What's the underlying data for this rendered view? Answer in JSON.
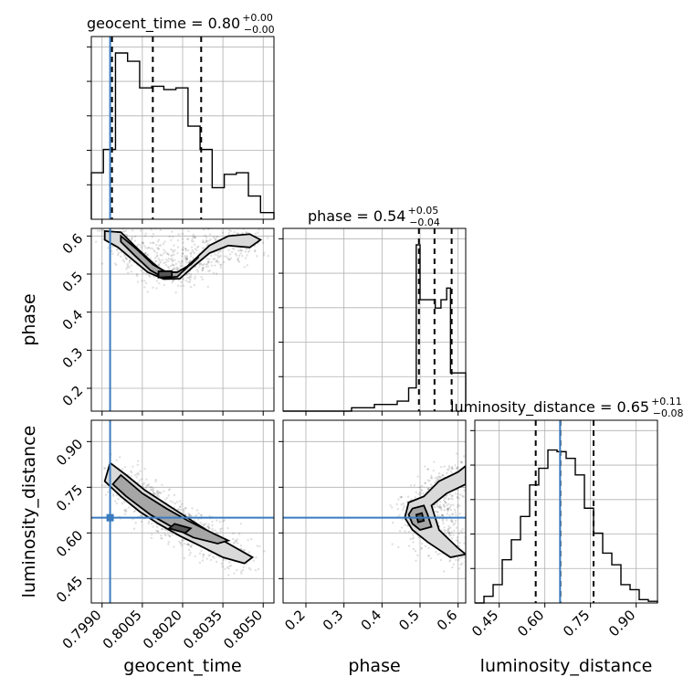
{
  "chart_data": {
    "type": "corner",
    "parameters": [
      "geocent_time",
      "phase",
      "luminosity_distance"
    ],
    "truths": {
      "geocent_time": 0.7993,
      "phase": null,
      "luminosity_distance": 0.65
    },
    "titles": [
      {
        "param": "geocent_time",
        "text": "geocent_time = 0.80",
        "plus": "+0.00",
        "minus": "−0.00"
      },
      {
        "param": "phase",
        "text": "phase = 0.54",
        "plus": "+0.05",
        "minus": "−0.04"
      },
      {
        "param": "luminosity_distance",
        "text": "luminosity_distance = 0.65",
        "plus": "+0.11",
        "minus": "−0.08"
      }
    ],
    "axes": {
      "geocent_time": {
        "label": "geocent_time",
        "range": [
          0.7986,
          0.8054
        ],
        "ticks": [
          0.799,
          0.8005,
          0.802,
          0.8035,
          0.805
        ],
        "tick_labels": [
          "0.7990",
          "0.8005",
          "0.8020",
          "0.8035",
          "0.8050"
        ]
      },
      "phase": {
        "label": "phase",
        "range": [
          0.14,
          0.62
        ],
        "ticks": [
          0.2,
          0.3,
          0.4,
          0.5,
          0.6
        ],
        "tick_labels": [
          "0.2",
          "0.3",
          "0.4",
          "0.5",
          "0.6"
        ]
      },
      "luminosity_distance": {
        "label": "luminosity_distance",
        "range": [
          0.37,
          0.97
        ],
        "ticks": [
          0.45,
          0.6,
          0.75,
          0.9
        ],
        "tick_labels": [
          "0.45",
          "0.60",
          "0.75",
          "0.90"
        ]
      }
    },
    "histograms": [
      {
        "param": "geocent_time",
        "edges": [
          0.7986,
          0.79905,
          0.7995,
          0.79995,
          0.8004,
          0.80085,
          0.8013,
          0.80175,
          0.8022,
          0.80265,
          0.8031,
          0.80355,
          0.804,
          0.80445,
          0.8049,
          0.8054
        ],
        "counts": [
          0.28,
          0.42,
          1.0,
          0.95,
          0.79,
          0.8,
          0.78,
          0.79,
          0.56,
          0.42,
          0.19,
          0.27,
          0.28,
          0.14,
          0.04
        ],
        "quantiles": [
          0.79937,
          0.80089,
          0.80269
        ]
      },
      {
        "param": "phase",
        "edges": [
          0.14,
          0.2,
          0.26,
          0.32,
          0.38,
          0.44,
          0.47,
          0.49,
          0.5,
          0.52,
          0.54,
          0.555,
          0.57,
          0.58,
          0.6,
          0.62
        ],
        "counts": [
          0.0,
          0.0,
          0.0,
          0.02,
          0.04,
          0.06,
          0.14,
          1.0,
          0.67,
          0.67,
          0.62,
          0.67,
          0.74,
          0.23,
          0.23
        ],
        "quantiles": [
          0.497,
          0.538,
          0.583
        ]
      },
      {
        "param": "luminosity_distance",
        "edges": [
          0.37,
          0.4,
          0.43,
          0.46,
          0.49,
          0.52,
          0.55,
          0.58,
          0.61,
          0.64,
          0.67,
          0.7,
          0.73,
          0.76,
          0.79,
          0.82,
          0.85,
          0.88,
          0.91,
          0.94,
          0.97
        ],
        "counts": [
          0.0,
          0.04,
          0.11,
          0.26,
          0.38,
          0.52,
          0.71,
          0.81,
          0.92,
          0.91,
          0.87,
          0.77,
          0.57,
          0.42,
          0.3,
          0.23,
          0.11,
          0.08,
          0.02,
          0.01
        ],
        "quantiles": [
          0.57,
          0.651,
          0.76
        ]
      }
    ],
    "pairs": [
      {
        "x": "geocent_time",
        "y": "phase",
        "contour_levels": [
          [
            [
              0.7991,
              0.613
            ],
            [
              0.7997,
              0.61
            ],
            [
              0.8002,
              0.575
            ],
            [
              0.8008,
              0.535
            ],
            [
              0.8013,
              0.505
            ],
            [
              0.8019,
              0.503
            ],
            [
              0.8024,
              0.535
            ],
            [
              0.803,
              0.575
            ],
            [
              0.8037,
              0.6
            ],
            [
              0.8045,
              0.605
            ],
            [
              0.8049,
              0.59
            ],
            [
              0.8045,
              0.57
            ],
            [
              0.8037,
              0.575
            ],
            [
              0.803,
              0.555
            ],
            [
              0.8024,
              0.52
            ],
            [
              0.8019,
              0.488
            ],
            [
              0.8013,
              0.487
            ],
            [
              0.8007,
              0.505
            ],
            [
              0.8001,
              0.54
            ],
            [
              0.7996,
              0.57
            ],
            [
              0.7991,
              0.59
            ]
          ],
          [
            [
              0.7997,
              0.6
            ],
            [
              0.8003,
              0.565
            ],
            [
              0.8009,
              0.525
            ],
            [
              0.8014,
              0.505
            ],
            [
              0.8018,
              0.505
            ],
            [
              0.8023,
              0.525
            ],
            [
              0.8026,
              0.545
            ],
            [
              0.8022,
              0.52
            ],
            [
              0.8018,
              0.493
            ],
            [
              0.8013,
              0.49
            ],
            [
              0.8008,
              0.51
            ],
            [
              0.8002,
              0.55
            ],
            [
              0.7997,
              0.585
            ]
          ],
          [
            [
              0.8011,
              0.507
            ],
            [
              0.8016,
              0.508
            ],
            [
              0.8016,
              0.493
            ],
            [
              0.8011,
              0.491
            ]
          ]
        ]
      },
      {
        "x": "geocent_time",
        "y": "luminosity_distance",
        "contour_levels": [
          [
            [
              0.7993,
              0.83
            ],
            [
              0.7999,
              0.79
            ],
            [
              0.8006,
              0.74
            ],
            [
              0.8013,
              0.7
            ],
            [
              0.802,
              0.66
            ],
            [
              0.8027,
              0.62
            ],
            [
              0.8034,
              0.58
            ],
            [
              0.8042,
              0.54
            ],
            [
              0.8046,
              0.52
            ],
            [
              0.8043,
              0.5
            ],
            [
              0.8035,
              0.52
            ],
            [
              0.8026,
              0.56
            ],
            [
              0.8019,
              0.59
            ],
            [
              0.8011,
              0.63
            ],
            [
              0.8004,
              0.67
            ],
            [
              0.7997,
              0.72
            ],
            [
              0.7991,
              0.77
            ]
          ],
          [
            [
              0.7997,
              0.79
            ],
            [
              0.8005,
              0.73
            ],
            [
              0.8014,
              0.68
            ],
            [
              0.8022,
              0.64
            ],
            [
              0.8031,
              0.6
            ],
            [
              0.8037,
              0.575
            ],
            [
              0.8033,
              0.565
            ],
            [
              0.8024,
              0.585
            ],
            [
              0.8016,
              0.62
            ],
            [
              0.8008,
              0.66
            ],
            [
              0.7999,
              0.72
            ],
            [
              0.7994,
              0.76
            ]
          ],
          [
            [
              0.8017,
              0.63
            ],
            [
              0.8023,
              0.615
            ],
            [
              0.8021,
              0.6
            ],
            [
              0.8015,
              0.615
            ]
          ]
        ]
      },
      {
        "x": "phase",
        "y": "luminosity_distance",
        "contour_levels": [
          [
            [
              0.47,
              0.7
            ],
            [
              0.51,
              0.72
            ],
            [
              0.55,
              0.77
            ],
            [
              0.6,
              0.8
            ],
            [
              0.62,
              0.82
            ],
            [
              0.62,
              0.76
            ],
            [
              0.57,
              0.73
            ],
            [
              0.53,
              0.69
            ],
            [
              0.55,
              0.61
            ],
            [
              0.6,
              0.55
            ],
            [
              0.62,
              0.53
            ],
            [
              0.58,
              0.52
            ],
            [
              0.52,
              0.57
            ],
            [
              0.48,
              0.61
            ],
            [
              0.46,
              0.65
            ]
          ],
          [
            [
              0.48,
              0.68
            ],
            [
              0.51,
              0.69
            ],
            [
              0.52,
              0.66
            ],
            [
              0.53,
              0.62
            ],
            [
              0.5,
              0.61
            ],
            [
              0.48,
              0.63
            ],
            [
              0.47,
              0.66
            ]
          ],
          [
            [
              0.49,
              0.66
            ],
            [
              0.505,
              0.665
            ],
            [
              0.51,
              0.64
            ],
            [
              0.495,
              0.635
            ]
          ]
        ]
      }
    ]
  }
}
